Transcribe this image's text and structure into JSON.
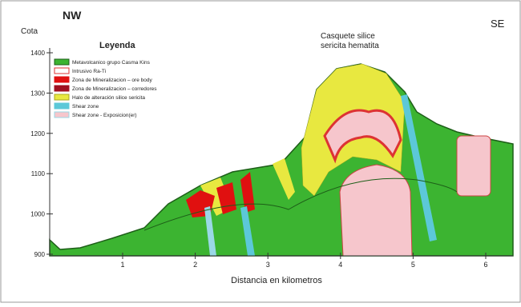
{
  "header": {
    "left": "NW",
    "right": "SE",
    "y_axis_title": "Cota"
  },
  "legend": {
    "title": "Leyenda",
    "items": [
      "Metavolcanico grupo Casma Kins",
      "Intrusivo Ra-Ti",
      "Zona de Mineralizacion – ore body",
      "Zona de Mineralizacion – corredores",
      "Halo de alteración silice sericita",
      "Shear zone",
      "Shear zone - Exposicion(er)"
    ]
  },
  "annotation": {
    "line1": "Casquete silice",
    "line2": "sericita hematita"
  },
  "y_axis": {
    "ticks": [
      "1400",
      "1300",
      "1200",
      "1100",
      "1000",
      "900"
    ]
  },
  "x_axis": {
    "ticks": [
      "1",
      "2",
      "3",
      "4",
      "5",
      "6"
    ],
    "title": "Distancia en kilometros"
  }
}
